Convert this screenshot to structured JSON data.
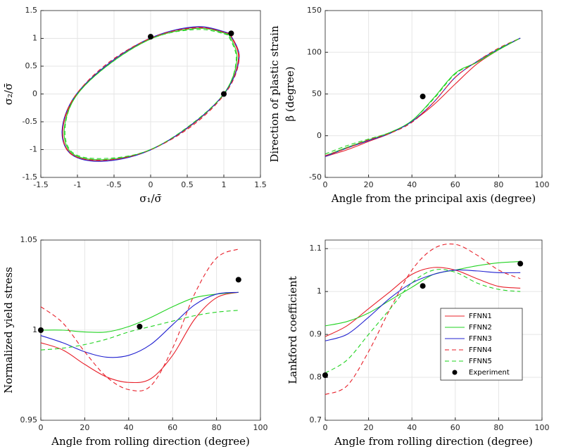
{
  "chart_data": [
    {
      "type": "line",
      "xlabel": "σ₁/σ̄",
      "ylabel": "σ₂/σ̄",
      "grid": true,
      "xlim": [
        -1.5,
        1.5
      ],
      "xticks": [
        -1.5,
        -1,
        -0.5,
        0,
        0.5,
        1,
        1.5
      ],
      "ylim": [
        -1.5,
        1.5
      ],
      "yticks": [
        -1.5,
        -1,
        -0.5,
        0,
        0.5,
        1,
        1.5
      ],
      "series": [
        {
          "color": "#e8202a",
          "x": [
            1.08,
            0.65,
            0.05,
            -0.56,
            -1.03,
            -1.2,
            -1.08,
            -0.65,
            -0.05,
            0.56,
            1.03,
            1.2,
            1.08
          ],
          "values": [
            1.08,
            1.2,
            1.03,
            0.56,
            -0.05,
            -0.65,
            -1.08,
            -1.2,
            -1.03,
            -0.56,
            0.05,
            0.65,
            1.08
          ]
        },
        {
          "color": "#22d322",
          "x": [
            1.07,
            0.66,
            0.06,
            -0.55,
            -1.02,
            -1.18,
            -1.07,
            -0.64,
            -0.04,
            0.56,
            1.02,
            1.18,
            1.07
          ],
          "values": [
            1.07,
            1.18,
            1.02,
            0.55,
            -0.04,
            -0.64,
            -1.07,
            -1.18,
            -1.02,
            -0.55,
            0.04,
            0.64,
            1.07
          ]
        },
        {
          "color": "#2020d0",
          "x": [
            1.08,
            0.64,
            0.04,
            -0.56,
            -1.04,
            -1.21,
            -1.08,
            -0.66,
            -0.06,
            0.55,
            1.03,
            1.21,
            1.08
          ],
          "values": [
            1.09,
            1.21,
            1.03,
            0.56,
            -0.05,
            -0.66,
            -1.09,
            -1.21,
            -1.04,
            -0.56,
            0.05,
            0.66,
            1.09
          ]
        },
        {
          "color": "#e8202a",
          "dash": true,
          "x": [
            1.09,
            0.65,
            0.05,
            -0.57,
            -1.04,
            -1.2,
            -1.09,
            -0.64,
            -0.05,
            0.57,
            1.04,
            1.21,
            1.09
          ],
          "values": [
            1.08,
            1.19,
            1.03,
            0.57,
            -0.05,
            -0.64,
            -1.08,
            -1.19,
            -1.03,
            -0.57,
            0.05,
            0.64,
            1.08
          ]
        },
        {
          "color": "#22d322",
          "dash": true,
          "x": [
            1.06,
            0.66,
            0.06,
            -0.55,
            -1.02,
            -1.17,
            -1.06,
            -0.64,
            -0.04,
            0.55,
            1.02,
            1.17,
            1.06
          ],
          "values": [
            1.06,
            1.16,
            1.02,
            0.55,
            -0.04,
            -0.63,
            -1.06,
            -1.16,
            -1.02,
            -0.55,
            0.04,
            0.63,
            1.06
          ]
        },
        {
          "color": "#000000",
          "marker": "dot",
          "x": [
            0,
            1.1,
            1
          ],
          "values": [
            1.03,
            1.09,
            0
          ]
        }
      ]
    },
    {
      "type": "line",
      "xlabel": "Angle from the principal axis (degree)",
      "ylabel": [
        "Direction of plastic strain",
        "β (degree)"
      ],
      "grid": true,
      "xlim": [
        0,
        100
      ],
      "xticks": [
        0,
        20,
        40,
        60,
        80,
        100
      ],
      "ylim": [
        -50,
        150
      ],
      "yticks": [
        -50,
        0,
        50,
        100,
        150
      ],
      "x": [
        0,
        10,
        20,
        30,
        40,
        50,
        60,
        70,
        80,
        90
      ],
      "series": [
        {
          "color": "#e8202a",
          "values": [
            -25,
            -17,
            -7,
            3,
            17,
            37,
            62,
            86,
            103,
            117
          ]
        },
        {
          "color": "#22d322",
          "values": [
            -24,
            -14,
            -5,
            4,
            18,
            45,
            75,
            88,
            103,
            117
          ]
        },
        {
          "color": "#2020d0",
          "values": [
            -25,
            -15,
            -6,
            3,
            17,
            40,
            70,
            89,
            104,
            117
          ]
        },
        {
          "color": "#e8202a",
          "dash": true,
          "values": [
            -24,
            -15,
            -5,
            3,
            16,
            40,
            70,
            89,
            105,
            117
          ]
        },
        {
          "color": "#22d322",
          "dash": true,
          "values": [
            -22,
            -12,
            -4,
            4,
            18,
            44,
            74,
            88,
            104,
            117
          ]
        },
        {
          "color": "#000000",
          "marker": "dot",
          "x": [
            45
          ],
          "values": [
            47
          ]
        }
      ]
    },
    {
      "type": "line",
      "xlabel": "Angle from rolling direction (degree)",
      "ylabel": "Normalized yield stress",
      "grid": true,
      "xlim": [
        0,
        100
      ],
      "xticks": [
        0,
        20,
        40,
        60,
        80,
        100
      ],
      "ylim": [
        0.95,
        1.05
      ],
      "yticks": [
        0.95,
        1,
        1.05
      ],
      "x": [
        0,
        10,
        20,
        30,
        40,
        50,
        60,
        70,
        80,
        90
      ],
      "series": [
        {
          "color": "#e8202a",
          "values": [
            0.993,
            0.989,
            0.981,
            0.974,
            0.971,
            0.973,
            0.986,
            1.006,
            1.018,
            1.021
          ]
        },
        {
          "color": "#22d322",
          "values": [
            1.0,
            1.0,
            0.999,
            0.999,
            1.002,
            1.007,
            1.013,
            1.018,
            1.02,
            1.021
          ]
        },
        {
          "color": "#2020d0",
          "values": [
            0.997,
            0.993,
            0.988,
            0.985,
            0.986,
            0.992,
            1.003,
            1.014,
            1.02,
            1.021
          ]
        },
        {
          "color": "#e8202a",
          "dash": true,
          "values": [
            1.013,
            1.004,
            0.988,
            0.974,
            0.967,
            0.969,
            0.99,
            1.02,
            1.04,
            1.045
          ]
        },
        {
          "color": "#22d322",
          "dash": true,
          "values": [
            0.989,
            0.99,
            0.992,
            0.995,
            0.999,
            1.002,
            1.005,
            1.008,
            1.01,
            1.011
          ]
        },
        {
          "color": "#000000",
          "marker": "dot",
          "x": [
            0,
            45,
            90
          ],
          "values": [
            1.0,
            1.002,
            1.028
          ]
        }
      ]
    },
    {
      "type": "line",
      "xlabel": "Angle from rolling direction (degree)",
      "ylabel": "Lankford coefficient",
      "grid": true,
      "legend": "right",
      "xlim": [
        0,
        100
      ],
      "xticks": [
        0,
        20,
        40,
        60,
        80,
        100
      ],
      "ylim": [
        0.7,
        1.12
      ],
      "yticks": [
        0.7,
        0.8,
        0.9,
        1,
        1.1
      ],
      "x": [
        0,
        10,
        20,
        30,
        40,
        50,
        60,
        70,
        80,
        90
      ],
      "series": [
        {
          "name": "FFNN1",
          "color": "#e8202a",
          "values": [
            0.895,
            0.92,
            0.96,
            1.0,
            1.04,
            1.056,
            1.05,
            1.03,
            1.012,
            1.008
          ]
        },
        {
          "name": "FFNN2",
          "color": "#22d322",
          "values": [
            0.92,
            0.93,
            0.95,
            0.98,
            1.01,
            1.04,
            1.05,
            1.06,
            1.067,
            1.07
          ]
        },
        {
          "name": "FFNN3",
          "color": "#2020d0",
          "values": [
            0.885,
            0.9,
            0.94,
            0.985,
            1.02,
            1.04,
            1.05,
            1.048,
            1.044,
            1.044
          ]
        },
        {
          "name": "FFNN4",
          "color": "#e8202a",
          "dash": true,
          "values": [
            0.76,
            0.78,
            0.86,
            0.96,
            1.05,
            1.1,
            1.11,
            1.085,
            1.05,
            1.03
          ]
        },
        {
          "name": "FFNN5",
          "color": "#22d322",
          "dash": true,
          "values": [
            0.81,
            0.84,
            0.9,
            0.96,
            1.02,
            1.05,
            1.045,
            1.02,
            1.005,
            1.0
          ]
        },
        {
          "name": "Experiment",
          "color": "#000000",
          "marker": "dot",
          "x": [
            0,
            45,
            90
          ],
          "values": [
            0.805,
            1.013,
            1.065
          ]
        }
      ]
    }
  ]
}
